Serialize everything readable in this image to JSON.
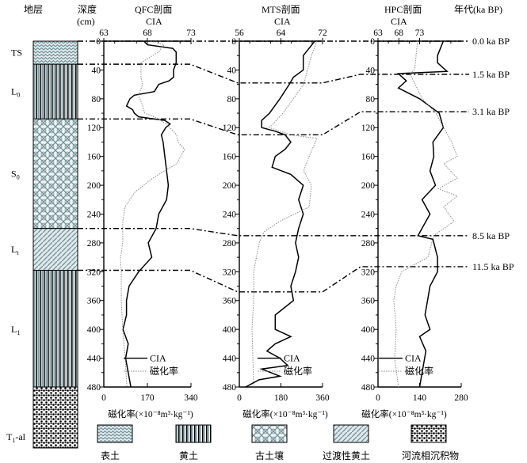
{
  "header": {
    "strata": "地层",
    "depth": "深度",
    "depth_unit": "(cm)",
    "age": "年代(ka BP)"
  },
  "strata_labels": [
    {
      "base": "TS",
      "sub": ""
    },
    {
      "base": "L",
      "sub": "0"
    },
    {
      "base": "S",
      "sub": "0"
    },
    {
      "base": "L",
      "sub": "t"
    },
    {
      "base": "L",
      "sub": "1"
    },
    {
      "base": "T",
      "sub": "1",
      "tail": "-al"
    }
  ],
  "age_labels": [
    "0.0 ka BP",
    "1.5 ka BP",
    "3.1 ka BP",
    "8.5 ka BP",
    "11.5 ka BP"
  ],
  "legend": {
    "items": [
      "表土",
      "黄土",
      "古土壤",
      "过渡性黄土",
      "河流相沉积物"
    ],
    "cia": "CIA",
    "mag": "磁化率"
  },
  "colors": {
    "cia": "#000000",
    "mag": "#8a8a8a",
    "pattern": "#6f8f96"
  },
  "chart_data": [
    {
      "type": "line",
      "title": "QFC剖面",
      "top_axis_label": "CIA",
      "bottom_axis_label": "磁化率(×10⁻⁸m³·kg⁻¹)",
      "ylabel": "深度(cm)",
      "ylim": [
        0,
        480
      ],
      "depth_ticks": [
        "0",
        "40",
        "80",
        "120",
        "160",
        "200",
        "240",
        "280",
        "320",
        "360",
        "400",
        "440",
        "480"
      ],
      "cia_lim": [
        63,
        73
      ],
      "cia_ticks": [
        "63",
        "68",
        "73"
      ],
      "mag_lim": [
        0,
        340
      ],
      "mag_ticks": [
        "0",
        "170",
        "340"
      ],
      "boundaries": [
        32,
        108,
        260,
        318
      ],
      "series": [
        {
          "name": "CIA",
          "depth": [
            0,
            5,
            10,
            15,
            30,
            40,
            50,
            55,
            60,
            70,
            75,
            80,
            90,
            95,
            100,
            105,
            110,
            115,
            120,
            130,
            140,
            160,
            180,
            200,
            220,
            240,
            260,
            280,
            300,
            320,
            340,
            360,
            380,
            400,
            420,
            440,
            460,
            480
          ],
          "values": [
            67.6,
            68,
            70.9,
            71.3,
            71.3,
            71,
            71,
            70.5,
            69.3,
            68.8,
            66.5,
            66,
            65.6,
            66.3,
            66.5,
            67,
            70,
            70.6,
            70.1,
            69.6,
            69.8,
            70,
            70.2,
            70.4,
            70.2,
            69.3,
            69,
            68.1,
            68.5,
            67,
            65.9,
            65.6,
            65.6,
            65.2,
            65.8,
            65.5,
            65.8,
            66.1
          ]
        },
        {
          "name": "磁化率",
          "depth": [
            0,
            5,
            15,
            30,
            50,
            60,
            75,
            90,
            100,
            105,
            115,
            130,
            140,
            150,
            170,
            190,
            210,
            230,
            250,
            280,
            300,
            320,
            360,
            400,
            440,
            480
          ],
          "values": [
            182,
            235,
            213,
            145,
            145,
            151,
            136,
            151,
            160,
            198,
            244,
            284,
            290,
            315,
            284,
            191,
            120,
            83,
            74,
            74,
            65,
            68,
            68,
            74,
            83,
            90
          ]
        }
      ]
    },
    {
      "type": "line",
      "title": "MTS剖面",
      "top_axis_label": "CIA",
      "bottom_axis_label": "磁化率(×10⁻⁸m³·kg⁻¹)",
      "ylim": [
        0,
        480
      ],
      "depth_ticks": [
        "0",
        "40",
        "80",
        "120",
        "160",
        "200",
        "240",
        "280",
        "320",
        "360",
        "400",
        "440",
        "480"
      ],
      "cia_lim": [
        56,
        72
      ],
      "cia_ticks": [
        "56",
        "64",
        "72"
      ],
      "mag_lim": [
        0,
        360
      ],
      "mag_ticks": [
        "0",
        "180",
        "360"
      ],
      "boundaries": [
        58,
        130,
        270,
        348
      ],
      "series": [
        {
          "name": "CIA",
          "depth": [
            0,
            20,
            40,
            50,
            60,
            80,
            100,
            110,
            120,
            125,
            130,
            140,
            150,
            160,
            175,
            185,
            200,
            220,
            240,
            260,
            280,
            300,
            320,
            340,
            360,
            380,
            400,
            410,
            420,
            430,
            440,
            450,
            455,
            465,
            470,
            480
          ],
          "values": [
            70.5,
            68.3,
            68.3,
            66.4,
            65.6,
            63.8,
            61.8,
            60.3,
            60.3,
            62.9,
            64.8,
            65.9,
            64.8,
            62.9,
            62.3,
            65.9,
            68.3,
            67.4,
            68.3,
            67.4,
            66.8,
            67.4,
            66.8,
            65.9,
            66.4,
            62.9,
            62.9,
            65.9,
            62.9,
            61.3,
            63.8,
            65.3,
            60.3,
            63.8,
            59.8,
            57.2
          ]
        },
        {
          "name": "磁化率",
          "depth": [
            0,
            20,
            60,
            100,
            120,
            130,
            135,
            160,
            180,
            200,
            230,
            250,
            265,
            280,
            320,
            360,
            400,
            480
          ],
          "values": [
            336,
            312,
            278,
            189,
            130,
            223,
            336,
            302,
            278,
            312,
            302,
            175,
            106,
            86,
            62,
            62,
            55,
            62
          ]
        }
      ]
    },
    {
      "type": "line",
      "title": "HPC剖面",
      "top_axis_label": "CIA",
      "bottom_axis_label": "磁化率(×10⁻⁸m³·kg⁻¹)",
      "ylim": [
        0,
        480
      ],
      "depth_ticks": [
        "0",
        "40",
        "80",
        "120",
        "160",
        "200",
        "240",
        "280",
        "320",
        "360",
        "400",
        "440",
        "480"
      ],
      "cia_lim": [
        63,
        83
      ],
      "cia_ticks": [
        "63",
        "68",
        "73"
      ],
      "mag_lim": [
        0,
        280
      ],
      "mag_ticks": [
        "0",
        "140",
        "280"
      ],
      "boundaries": [
        46,
        98,
        270,
        313
      ],
      "series": [
        {
          "name": "CIA",
          "depth": [
            0,
            20,
            30,
            42,
            45,
            55,
            65,
            80,
            100,
            120,
            140,
            160,
            180,
            200,
            220,
            240,
            270,
            275,
            300,
            320,
            340,
            360,
            380,
            400,
            410,
            430,
            480
          ],
          "values": [
            78.7,
            77.3,
            77.3,
            79.6,
            67.9,
            69.8,
            67.9,
            73,
            77.7,
            78.7,
            76.2,
            76.4,
            75.5,
            76.8,
            73.6,
            75.5,
            72.6,
            76.2,
            77.3,
            77.3,
            75.5,
            74.9,
            74.3,
            75.5,
            73,
            74.5,
            73
          ]
        },
        {
          "name": "磁化率",
          "depth": [
            0,
            40,
            45,
            80,
            100,
            120,
            140,
            160,
            170,
            190,
            205,
            215,
            230,
            250,
            270,
            300,
            320,
            340,
            360,
            400,
            440,
            480
          ],
          "values": [
            133,
            123,
            107,
            149,
            195,
            221,
            248,
            267,
            221,
            267,
            203,
            267,
            221,
            256,
            187,
            168,
            80,
            61,
            53,
            61,
            56,
            69
          ]
        }
      ]
    }
  ]
}
